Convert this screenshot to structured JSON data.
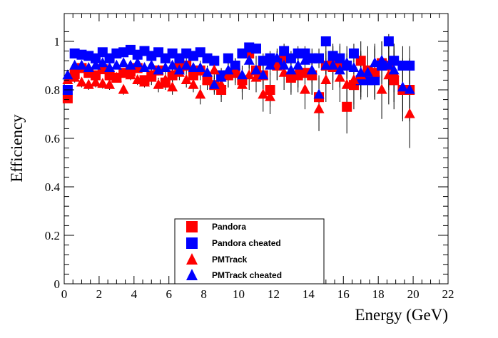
{
  "chart_data": {
    "type": "scatter",
    "title": "",
    "xlabel": "Energy (GeV)",
    "ylabel": "Efficiency",
    "xlim": [
      0,
      22
    ],
    "ylim": [
      0,
      1.05
    ],
    "xticks": [
      "0",
      "2",
      "4",
      "6",
      "8",
      "10",
      "12",
      "14",
      "16",
      "18",
      "20",
      "22"
    ],
    "yticks": [
      "0",
      "0.2",
      "0.4",
      "0.6",
      "0.8",
      "1"
    ],
    "grid": false,
    "legend_position": "bottom-center",
    "series": [
      {
        "name": "Pandora",
        "marker": "square",
        "color": "#ff0000",
        "points": [
          {
            "x": 0.2,
            "y": 0.765,
            "err": 0.01
          },
          {
            "x": 0.6,
            "y": 0.865,
            "err": 0.02
          },
          {
            "x": 1.0,
            "y": 0.89,
            "err": 0.02
          },
          {
            "x": 1.4,
            "y": 0.87,
            "err": 0.02
          },
          {
            "x": 1.8,
            "y": 0.86,
            "err": 0.02
          },
          {
            "x": 2.2,
            "y": 0.885,
            "err": 0.02
          },
          {
            "x": 2.6,
            "y": 0.86,
            "err": 0.02
          },
          {
            "x": 3.0,
            "y": 0.85,
            "err": 0.02
          },
          {
            "x": 3.4,
            "y": 0.87,
            "err": 0.02
          },
          {
            "x": 3.8,
            "y": 0.875,
            "err": 0.02
          },
          {
            "x": 4.2,
            "y": 0.89,
            "err": 0.02
          },
          {
            "x": 4.6,
            "y": 0.84,
            "err": 0.02
          },
          {
            "x": 5.0,
            "y": 0.86,
            "err": 0.02
          },
          {
            "x": 5.4,
            "y": 0.88,
            "err": 0.02
          },
          {
            "x": 5.8,
            "y": 0.83,
            "err": 0.03
          },
          {
            "x": 6.2,
            "y": 0.86,
            "err": 0.03
          },
          {
            "x": 6.6,
            "y": 0.89,
            "err": 0.03
          },
          {
            "x": 7.0,
            "y": 0.9,
            "err": 0.03
          },
          {
            "x": 7.4,
            "y": 0.86,
            "err": 0.03
          },
          {
            "x": 7.8,
            "y": 0.88,
            "err": 0.04
          },
          {
            "x": 8.2,
            "y": 0.84,
            "err": 0.04
          },
          {
            "x": 8.6,
            "y": 0.82,
            "err": 0.04
          },
          {
            "x": 9.0,
            "y": 0.8,
            "err": 0.05
          },
          {
            "x": 9.4,
            "y": 0.86,
            "err": 0.05
          },
          {
            "x": 9.8,
            "y": 0.87,
            "err": 0.05
          },
          {
            "x": 10.2,
            "y": 0.84,
            "err": 0.05
          },
          {
            "x": 10.6,
            "y": 0.95,
            "err": 0.04
          },
          {
            "x": 11.0,
            "y": 0.88,
            "err": 0.06
          },
          {
            "x": 11.4,
            "y": 0.86,
            "err": 0.06
          },
          {
            "x": 11.8,
            "y": 0.8,
            "err": 0.07
          },
          {
            "x": 12.2,
            "y": 0.9,
            "err": 0.06
          },
          {
            "x": 12.6,
            "y": 0.93,
            "err": 0.05
          },
          {
            "x": 13.0,
            "y": 0.85,
            "err": 0.07
          },
          {
            "x": 13.4,
            "y": 0.86,
            "err": 0.07
          },
          {
            "x": 13.8,
            "y": 0.87,
            "err": 0.07
          },
          {
            "x": 14.2,
            "y": 0.86,
            "err": 0.08
          },
          {
            "x": 14.6,
            "y": 0.77,
            "err": 0.09
          },
          {
            "x": 15.0,
            "y": 0.9,
            "err": 0.08
          },
          {
            "x": 15.4,
            "y": 0.91,
            "err": 0.08
          },
          {
            "x": 15.8,
            "y": 0.9,
            "err": 0.09
          },
          {
            "x": 16.2,
            "y": 0.73,
            "err": 0.11
          },
          {
            "x": 16.6,
            "y": 0.82,
            "err": 0.1
          },
          {
            "x": 17.0,
            "y": 0.92,
            "err": 0.08
          },
          {
            "x": 17.4,
            "y": 0.88,
            "err": 0.1
          },
          {
            "x": 17.8,
            "y": 0.87,
            "err": 0.1
          },
          {
            "x": 18.2,
            "y": 0.91,
            "err": 0.09
          },
          {
            "x": 18.6,
            "y": 0.9,
            "err": 0.1
          },
          {
            "x": 18.9,
            "y": 0.84,
            "err": 0.12
          },
          {
            "x": 19.4,
            "y": 0.8,
            "err": 0.12
          },
          {
            "x": 19.8,
            "y": 0.8,
            "err": 0.13
          }
        ]
      },
      {
        "name": "Pandora cheated",
        "marker": "square",
        "color": "#0000ff",
        "points": [
          {
            "x": 0.2,
            "y": 0.8,
            "err": 0.01
          },
          {
            "x": 0.6,
            "y": 0.95,
            "err": 0.01
          },
          {
            "x": 1.0,
            "y": 0.945,
            "err": 0.01
          },
          {
            "x": 1.4,
            "y": 0.94,
            "err": 0.01
          },
          {
            "x": 1.8,
            "y": 0.93,
            "err": 0.01
          },
          {
            "x": 2.2,
            "y": 0.955,
            "err": 0.01
          },
          {
            "x": 2.6,
            "y": 0.93,
            "err": 0.01
          },
          {
            "x": 3.0,
            "y": 0.95,
            "err": 0.01
          },
          {
            "x": 3.4,
            "y": 0.955,
            "err": 0.01
          },
          {
            "x": 3.8,
            "y": 0.965,
            "err": 0.01
          },
          {
            "x": 4.2,
            "y": 0.945,
            "err": 0.01
          },
          {
            "x": 4.6,
            "y": 0.96,
            "err": 0.01
          },
          {
            "x": 5.0,
            "y": 0.94,
            "err": 0.01
          },
          {
            "x": 5.4,
            "y": 0.955,
            "err": 0.01
          },
          {
            "x": 5.8,
            "y": 0.93,
            "err": 0.01
          },
          {
            "x": 6.2,
            "y": 0.95,
            "err": 0.01
          },
          {
            "x": 6.6,
            "y": 0.93,
            "err": 0.02
          },
          {
            "x": 7.0,
            "y": 0.95,
            "err": 0.02
          },
          {
            "x": 7.4,
            "y": 0.94,
            "err": 0.02
          },
          {
            "x": 7.8,
            "y": 0.955,
            "err": 0.02
          },
          {
            "x": 8.2,
            "y": 0.93,
            "err": 0.02
          },
          {
            "x": 8.6,
            "y": 0.92,
            "err": 0.02
          },
          {
            "x": 9.0,
            "y": 0.86,
            "err": 0.03
          },
          {
            "x": 9.4,
            "y": 0.93,
            "err": 0.02
          },
          {
            "x": 9.8,
            "y": 0.9,
            "err": 0.03
          },
          {
            "x": 10.2,
            "y": 0.95,
            "err": 0.02
          },
          {
            "x": 10.6,
            "y": 0.975,
            "err": 0.02
          },
          {
            "x": 11.0,
            "y": 0.97,
            "err": 0.02
          },
          {
            "x": 11.4,
            "y": 0.92,
            "err": 0.03
          },
          {
            "x": 11.8,
            "y": 0.93,
            "err": 0.03
          },
          {
            "x": 12.2,
            "y": 0.91,
            "err": 0.03
          },
          {
            "x": 12.6,
            "y": 0.96,
            "err": 0.03
          },
          {
            "x": 13.0,
            "y": 0.93,
            "err": 0.03
          },
          {
            "x": 13.4,
            "y": 0.95,
            "err": 0.03
          },
          {
            "x": 13.8,
            "y": 0.95,
            "err": 0.03
          },
          {
            "x": 14.2,
            "y": 0.93,
            "err": 0.04
          },
          {
            "x": 14.6,
            "y": 0.93,
            "err": 0.04
          },
          {
            "x": 15.0,
            "y": 1.0,
            "err": 0.02
          },
          {
            "x": 15.4,
            "y": 0.94,
            "err": 0.04
          },
          {
            "x": 15.8,
            "y": 0.93,
            "err": 0.05
          },
          {
            "x": 16.2,
            "y": 0.9,
            "err": 0.05
          },
          {
            "x": 16.6,
            "y": 0.95,
            "err": 0.04
          },
          {
            "x": 17.0,
            "y": 0.84,
            "err": 0.07
          },
          {
            "x": 17.4,
            "y": 0.84,
            "err": 0.07
          },
          {
            "x": 17.8,
            "y": 0.84,
            "err": 0.08
          },
          {
            "x": 18.2,
            "y": 0.9,
            "err": 0.07
          },
          {
            "x": 18.6,
            "y": 1.0,
            "err": 0.03
          },
          {
            "x": 18.9,
            "y": 0.92,
            "err": 0.07
          },
          {
            "x": 19.4,
            "y": 0.9,
            "err": 0.08
          },
          {
            "x": 19.8,
            "y": 0.9,
            "err": 0.08
          }
        ]
      },
      {
        "name": "PMTrack",
        "marker": "triangle",
        "color": "#ff0000",
        "points": [
          {
            "x": 0.2,
            "y": 0.84,
            "err": 0.01
          },
          {
            "x": 0.6,
            "y": 0.85,
            "err": 0.02
          },
          {
            "x": 1.0,
            "y": 0.83,
            "err": 0.02
          },
          {
            "x": 1.4,
            "y": 0.82,
            "err": 0.02
          },
          {
            "x": 1.8,
            "y": 0.83,
            "err": 0.02
          },
          {
            "x": 2.2,
            "y": 0.825,
            "err": 0.02
          },
          {
            "x": 2.6,
            "y": 0.82,
            "err": 0.02
          },
          {
            "x": 3.0,
            "y": 0.85,
            "err": 0.02
          },
          {
            "x": 3.4,
            "y": 0.8,
            "err": 0.02
          },
          {
            "x": 3.8,
            "y": 0.86,
            "err": 0.02
          },
          {
            "x": 4.2,
            "y": 0.84,
            "err": 0.02
          },
          {
            "x": 4.6,
            "y": 0.83,
            "err": 0.02
          },
          {
            "x": 5.0,
            "y": 0.85,
            "err": 0.03
          },
          {
            "x": 5.4,
            "y": 0.82,
            "err": 0.03
          },
          {
            "x": 5.8,
            "y": 0.84,
            "err": 0.03
          },
          {
            "x": 6.2,
            "y": 0.81,
            "err": 0.03
          },
          {
            "x": 6.6,
            "y": 0.87,
            "err": 0.03
          },
          {
            "x": 7.0,
            "y": 0.84,
            "err": 0.03
          },
          {
            "x": 7.4,
            "y": 0.82,
            "err": 0.03
          },
          {
            "x": 7.8,
            "y": 0.78,
            "err": 0.04
          },
          {
            "x": 8.2,
            "y": 0.84,
            "err": 0.04
          },
          {
            "x": 8.6,
            "y": 0.88,
            "err": 0.04
          },
          {
            "x": 9.0,
            "y": 0.82,
            "err": 0.05
          },
          {
            "x": 9.4,
            "y": 0.86,
            "err": 0.05
          },
          {
            "x": 9.8,
            "y": 0.88,
            "err": 0.05
          },
          {
            "x": 10.2,
            "y": 0.82,
            "err": 0.06
          },
          {
            "x": 10.6,
            "y": 0.86,
            "err": 0.06
          },
          {
            "x": 11.0,
            "y": 0.85,
            "err": 0.06
          },
          {
            "x": 11.4,
            "y": 0.78,
            "err": 0.07
          },
          {
            "x": 11.8,
            "y": 0.77,
            "err": 0.07
          },
          {
            "x": 12.2,
            "y": 0.9,
            "err": 0.06
          },
          {
            "x": 12.6,
            "y": 0.87,
            "err": 0.07
          },
          {
            "x": 13.0,
            "y": 0.86,
            "err": 0.07
          },
          {
            "x": 13.4,
            "y": 0.88,
            "err": 0.07
          },
          {
            "x": 13.8,
            "y": 0.8,
            "err": 0.08
          },
          {
            "x": 14.2,
            "y": 0.86,
            "err": 0.08
          },
          {
            "x": 14.6,
            "y": 0.72,
            "err": 0.09
          },
          {
            "x": 15.0,
            "y": 0.84,
            "err": 0.09
          },
          {
            "x": 15.4,
            "y": 0.89,
            "err": 0.09
          },
          {
            "x": 15.8,
            "y": 0.85,
            "err": 0.1
          },
          {
            "x": 16.2,
            "y": 0.82,
            "err": 0.11
          },
          {
            "x": 16.6,
            "y": 0.84,
            "err": 0.1
          },
          {
            "x": 17.0,
            "y": 0.86,
            "err": 0.1
          },
          {
            "x": 17.4,
            "y": 0.87,
            "err": 0.1
          },
          {
            "x": 17.8,
            "y": 0.87,
            "err": 0.11
          },
          {
            "x": 18.2,
            "y": 0.8,
            "err": 0.12
          },
          {
            "x": 18.6,
            "y": 0.86,
            "err": 0.12
          },
          {
            "x": 18.9,
            "y": 0.87,
            "err": 0.12
          },
          {
            "x": 19.4,
            "y": 0.8,
            "err": 0.13
          },
          {
            "x": 19.8,
            "y": 0.7,
            "err": 0.14
          }
        ]
      },
      {
        "name": "PMTrack cheated",
        "marker": "triangle",
        "color": "#0000ff",
        "points": [
          {
            "x": 0.2,
            "y": 0.86,
            "err": 0.01
          },
          {
            "x": 0.6,
            "y": 0.9,
            "err": 0.01
          },
          {
            "x": 1.0,
            "y": 0.9,
            "err": 0.01
          },
          {
            "x": 1.4,
            "y": 0.89,
            "err": 0.01
          },
          {
            "x": 1.8,
            "y": 0.9,
            "err": 0.01
          },
          {
            "x": 2.2,
            "y": 0.91,
            "err": 0.01
          },
          {
            "x": 2.6,
            "y": 0.89,
            "err": 0.01
          },
          {
            "x": 3.0,
            "y": 0.9,
            "err": 0.01
          },
          {
            "x": 3.4,
            "y": 0.91,
            "err": 0.01
          },
          {
            "x": 3.8,
            "y": 0.9,
            "err": 0.01
          },
          {
            "x": 4.2,
            "y": 0.91,
            "err": 0.01
          },
          {
            "x": 4.6,
            "y": 0.89,
            "err": 0.01
          },
          {
            "x": 5.0,
            "y": 0.9,
            "err": 0.02
          },
          {
            "x": 5.4,
            "y": 0.88,
            "err": 0.02
          },
          {
            "x": 5.8,
            "y": 0.89,
            "err": 0.02
          },
          {
            "x": 6.2,
            "y": 0.9,
            "err": 0.02
          },
          {
            "x": 6.6,
            "y": 0.88,
            "err": 0.02
          },
          {
            "x": 7.0,
            "y": 0.9,
            "err": 0.02
          },
          {
            "x": 7.4,
            "y": 0.89,
            "err": 0.02
          },
          {
            "x": 7.8,
            "y": 0.89,
            "err": 0.02
          },
          {
            "x": 8.2,
            "y": 0.87,
            "err": 0.03
          },
          {
            "x": 8.6,
            "y": 0.82,
            "err": 0.03
          },
          {
            "x": 9.0,
            "y": 0.85,
            "err": 0.03
          },
          {
            "x": 9.4,
            "y": 0.88,
            "err": 0.03
          },
          {
            "x": 9.8,
            "y": 0.9,
            "err": 0.03
          },
          {
            "x": 10.2,
            "y": 0.86,
            "err": 0.04
          },
          {
            "x": 10.6,
            "y": 0.92,
            "err": 0.03
          },
          {
            "x": 11.0,
            "y": 0.88,
            "err": 0.04
          },
          {
            "x": 11.4,
            "y": 0.86,
            "err": 0.04
          },
          {
            "x": 11.8,
            "y": 0.9,
            "err": 0.04
          },
          {
            "x": 12.2,
            "y": 0.93,
            "err": 0.04
          },
          {
            "x": 12.6,
            "y": 0.9,
            "err": 0.04
          },
          {
            "x": 13.0,
            "y": 0.88,
            "err": 0.05
          },
          {
            "x": 13.4,
            "y": 0.9,
            "err": 0.05
          },
          {
            "x": 13.8,
            "y": 0.92,
            "err": 0.05
          },
          {
            "x": 14.2,
            "y": 0.88,
            "err": 0.05
          },
          {
            "x": 14.6,
            "y": 0.78,
            "err": 0.07
          },
          {
            "x": 15.0,
            "y": 0.9,
            "err": 0.06
          },
          {
            "x": 15.4,
            "y": 0.9,
            "err": 0.06
          },
          {
            "x": 15.8,
            "y": 0.88,
            "err": 0.07
          },
          {
            "x": 16.2,
            "y": 0.91,
            "err": 0.07
          },
          {
            "x": 16.6,
            "y": 0.89,
            "err": 0.07
          },
          {
            "x": 17.0,
            "y": 0.87,
            "err": 0.08
          },
          {
            "x": 17.4,
            "y": 0.87,
            "err": 0.08
          },
          {
            "x": 17.8,
            "y": 0.91,
            "err": 0.08
          },
          {
            "x": 18.2,
            "y": 0.92,
            "err": 0.08
          },
          {
            "x": 18.6,
            "y": 0.9,
            "err": 0.09
          },
          {
            "x": 18.9,
            "y": 0.88,
            "err": 0.09
          },
          {
            "x": 19.4,
            "y": 0.81,
            "err": 0.1
          },
          {
            "x": 19.8,
            "y": 0.8,
            "err": 0.11
          }
        ]
      }
    ]
  }
}
